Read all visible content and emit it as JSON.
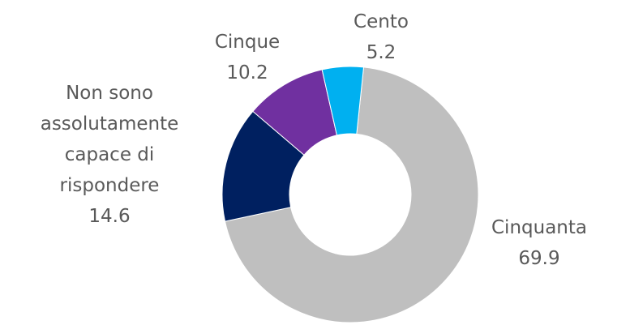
{
  "chart_data": {
    "type": "donut",
    "categories": [
      "Cinquanta",
      "Non sono assolutamente capace di rispondere",
      "Cinque",
      "Cento"
    ],
    "values": [
      69.9,
      14.6,
      10.2,
      5.2
    ],
    "colors": [
      "#bfbfbf",
      "#002060",
      "#7030a0",
      "#00b0f0"
    ]
  }
}
